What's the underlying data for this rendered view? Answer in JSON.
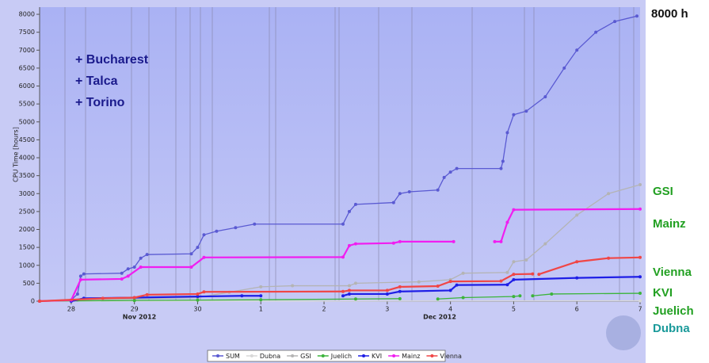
{
  "chart_data": {
    "type": "line",
    "y_label": "CPU Time [hours]",
    "xlim": [
      27.5,
      37
    ],
    "ylim": [
      0,
      8200
    ],
    "yticks": [
      0,
      500,
      1000,
      1500,
      2000,
      2500,
      3000,
      3500,
      4000,
      4500,
      5000,
      5500,
      6000,
      6500,
      7000,
      7500,
      8000
    ],
    "xticks": [
      28,
      29,
      30,
      {
        "value": 31,
        "label": "1"
      },
      {
        "value": 32,
        "label": "2"
      },
      {
        "value": 33,
        "label": "3"
      },
      {
        "value": 34,
        "label": "4"
      },
      {
        "value": 35,
        "label": "5"
      },
      {
        "value": 36,
        "label": "6"
      },
      {
        "value": 37,
        "label": "7"
      }
    ],
    "month_labels": [
      "Nov 2012",
      "Dec 2012"
    ],
    "annotations": [
      "+ Bucharest",
      "+ Talca",
      "+ Torino"
    ],
    "side_labels": [
      "8000 h",
      "GSI",
      "Mainz",
      "Vienna",
      "KVI",
      "Juelich",
      "Dubna"
    ],
    "series": [
      {
        "name": "SUM",
        "color": "#5a5ad2",
        "x": [
          27.5,
          28.0,
          28.1,
          28.15,
          28.2,
          28.8,
          28.9,
          29.0,
          29.1,
          29.2,
          29.9,
          30.0,
          30.1,
          30.3,
          30.6,
          30.9,
          32.3,
          32.4,
          32.5,
          33.1,
          33.2,
          33.35,
          33.8,
          33.9,
          34.0,
          34.1,
          34.8,
          34.83,
          34.9,
          35.0,
          35.2,
          35.5,
          35.8,
          36.0,
          36.3,
          36.6,
          36.95
        ],
        "values": [
          0,
          30,
          200,
          700,
          760,
          780,
          900,
          950,
          1200,
          1300,
          1320,
          1500,
          1850,
          1950,
          2050,
          2150,
          2150,
          2500,
          2700,
          2750,
          3000,
          3050,
          3100,
          3450,
          3600,
          3700,
          3700,
          3900,
          4700,
          5200,
          5300,
          5700,
          6500,
          7000,
          7500,
          7800,
          7950
        ]
      },
      {
        "name": "Dubna",
        "color": "#d8d8d8",
        "x": [
          27.5,
          37.0
        ],
        "values": [
          0,
          10
        ]
      },
      {
        "name": "GSI",
        "color": "#b4b4b4",
        "x": [
          27.5,
          28.1,
          29.0,
          30.0,
          30.5,
          31.0,
          31.5,
          32.4,
          32.5,
          33.5,
          34.0,
          34.2,
          34.9,
          35.0,
          35.2,
          35.5,
          36.0,
          36.5,
          37.0
        ],
        "values": [
          0,
          30,
          60,
          100,
          250,
          400,
          430,
          430,
          500,
          540,
          600,
          780,
          800,
          1100,
          1150,
          1600,
          2400,
          3000,
          3250
        ]
      },
      {
        "name": "Juelich",
        "color": "#3cb43c",
        "x": [
          27.5,
          29.0,
          30.0,
          31.0,
          32.5,
          33.2,
          33.5,
          33.8,
          34.2,
          35.0,
          35.1,
          35.2,
          35.3,
          35.6,
          37.0
        ],
        "values": [
          0,
          20,
          30,
          40,
          60,
          70,
          null,
          60,
          100,
          130,
          150,
          null,
          150,
          200,
          220
        ]
      },
      {
        "name": "KVI",
        "color": "#1e1ee6",
        "x": [
          28.0,
          28.2,
          29.0,
          30.0,
          30.7,
          31.0,
          31.5,
          32.3,
          32.4,
          33.0,
          33.2,
          34.0,
          34.1,
          34.9,
          35.0,
          36.0,
          37.0
        ],
        "values": [
          0,
          80,
          100,
          130,
          150,
          150,
          null,
          150,
          200,
          200,
          270,
          300,
          450,
          460,
          600,
          650,
          680
        ]
      },
      {
        "name": "Mainz",
        "color": "#f01ef0",
        "x": [
          27.5,
          28.0,
          28.15,
          28.8,
          28.9,
          29.1,
          29.9,
          30.1,
          32.3,
          32.4,
          32.5,
          33.1,
          33.2,
          34.05,
          34.4,
          34.7,
          34.8,
          34.9,
          35.0,
          37.0
        ],
        "values": [
          0,
          30,
          600,
          620,
          700,
          950,
          950,
          1220,
          1230,
          1550,
          1600,
          1620,
          1660,
          1660,
          null,
          1660,
          1660,
          2200,
          2550,
          2570
        ]
      },
      {
        "name": "Vienna",
        "color": "#f04646",
        "x": [
          27.5,
          28.5,
          29.0,
          29.2,
          30.0,
          30.1,
          32.3,
          32.4,
          33.0,
          33.2,
          33.8,
          34.0,
          34.8,
          35.0,
          35.3,
          35.35,
          35.4,
          36.0,
          36.5,
          37.0
        ],
        "values": [
          0,
          80,
          100,
          180,
          200,
          260,
          270,
          300,
          300,
          400,
          420,
          550,
          560,
          750,
          760,
          null,
          750,
          1100,
          1200,
          1220
        ]
      }
    ]
  }
}
